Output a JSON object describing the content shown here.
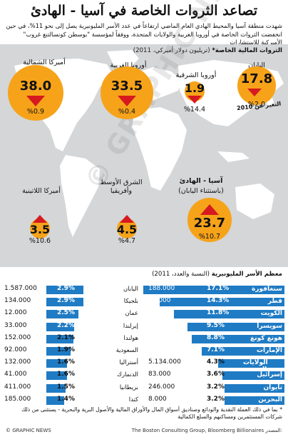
{
  "title": "تصاعد الثروات الخاصة في آسيا - الهادئ",
  "intro": "شهدت منطقة آسيا والمحيط الهادي العام الماضي ارتفاعاً في عدد الأسر المليونيرية يصل إلى نحو 11%، في حين انخفضت الثروات الخاصة في أوروبا الغربية والولايات المتحدة، ووفقاً لمؤسسة \"بوسطن كونسالتنغ غروب\" الأميركية للاستشارات",
  "map_heading": {
    "bold": "الثروات المالية الخاصة*",
    "sub": " (تريليون دولار أميركي، 2011)"
  },
  "japan_note": "التغير عن 2010",
  "watermark": "© GRAPHIC NEWS",
  "colors": {
    "bubble": "#f6a31a",
    "arrow": "#d61a1f",
    "bar": "#1f7bc4",
    "map_bg": "#d4d6d8",
    "land": "#ffffff"
  },
  "chart_data": [
    {
      "type": "scatter",
      "title": "الثروات المالية الخاصة*",
      "subtitle": "(تريليون دولار أميركي، 2011)",
      "regions": [
        {
          "name": "أميركا الشمالية",
          "value": 38.0,
          "value_label": "38.0",
          "change_pct": -0.9,
          "change_label": "%0.9",
          "direction": "down"
        },
        {
          "name": "أوروبا الغربية",
          "value": 33.5,
          "value_label": "33.5",
          "change_pct": -0.4,
          "change_label": "%0.4",
          "direction": "down"
        },
        {
          "name": "أوروبا الشرقية",
          "value": 1.9,
          "value_label": "1.9",
          "change_pct": -14.4,
          "change_label": "%14.4",
          "direction": "down"
        },
        {
          "name": "اليابان",
          "value": 17.8,
          "value_label": "17.8",
          "change_pct": -2.0,
          "change_label": "%2.0",
          "direction": "down"
        },
        {
          "name": "أميركا اللاتينية",
          "value": 3.5,
          "value_label": "3.5",
          "change_pct": 10.6,
          "change_label": "%10.6",
          "direction": "up"
        },
        {
          "name": "الشرق الأوسط وأفريقيا",
          "value": 4.5,
          "value_label": "4.5",
          "change_pct": 4.7,
          "change_label": "%4.7",
          "direction": "up"
        },
        {
          "name": "آسيا - الهادئ",
          "name_line2": "(باستثناء اليابان)",
          "value": 23.7,
          "value_label": "23.7",
          "change_pct": 10.7,
          "change_label": "%10.7",
          "direction": "up"
        }
      ]
    },
    {
      "type": "bar",
      "title": "معظم الأسر المليونيرية",
      "subtitle": "(النسبة والعدد، 2011)",
      "unit": "%",
      "columns": [
        {
          "rows": [
            {
              "country": "سنغافورة",
              "pct": 17.1,
              "pct_label": "17.1%",
              "count": "188.000"
            },
            {
              "country": "قطر",
              "pct": 14.3,
              "pct_label": "14.3%",
              "count": "47.000"
            },
            {
              "country": "الكويت",
              "pct": 11.8,
              "pct_label": "11.8%",
              "count": "63.000"
            },
            {
              "country": "سويسرا",
              "pct": 9.5,
              "pct_label": "9.5%",
              "count": "322.000"
            },
            {
              "country": "هونغ كونغ",
              "pct": 8.8,
              "pct_label": "8.8%",
              "count": "212.000"
            },
            {
              "country": "الإمارات",
              "pct": 7.1,
              "pct_label": "7.1%",
              "count": "57.000"
            },
            {
              "country": "الولايات المتحدة",
              "pct": 4.3,
              "pct_label": "4.3%",
              "count": "5.134.000"
            },
            {
              "country": "إسرائيل",
              "pct": 3.6,
              "pct_label": "3.6%",
              "count": "83.000"
            },
            {
              "country": "تايوان",
              "pct": 3.2,
              "pct_label": "3.2%",
              "count": "246.000"
            },
            {
              "country": "البحرين",
              "pct": 3.2,
              "pct_label": "3.2%",
              "count": "8.000"
            }
          ]
        },
        {
          "rows": [
            {
              "country": "اليابان",
              "pct": 2.9,
              "pct_label": "2.9%",
              "count": "1.587.000"
            },
            {
              "country": "بلجيكا",
              "pct": 2.9,
              "pct_label": "2.9%",
              "count": "134.000"
            },
            {
              "country": "عمان",
              "pct": 2.5,
              "pct_label": "2.5%",
              "count": "12.000"
            },
            {
              "country": "إيرلندا",
              "pct": 2.2,
              "pct_label": "2.2%",
              "count": "33.000"
            },
            {
              "country": "هولندا",
              "pct": 2.1,
              "pct_label": "2.1%",
              "count": "152.000"
            },
            {
              "country": "السعودية",
              "pct": 1.9,
              "pct_label": "1.9%",
              "count": "92.000"
            },
            {
              "country": "أستراليا",
              "pct": 1.6,
              "pct_label": "1.6%",
              "count": "132.000"
            },
            {
              "country": "الدنمارك",
              "pct": 1.6,
              "pct_label": "1.6%",
              "count": "41.000"
            },
            {
              "country": "بريطانيا",
              "pct": 1.5,
              "pct_label": "1.5%",
              "count": "411.000"
            },
            {
              "country": "كندا",
              "pct": 1.4,
              "pct_label": "1.4%",
              "count": "185.000"
            }
          ]
        }
      ]
    }
  ],
  "footnote": "* بما في ذلك العملة النقدية والودائع وصناديق أسواق المال والأوراق المالية والأصول البرية والبحرية - يستثنى من ذلك شركات المستثمرين ومساكنهم والسلع الكمالية",
  "footer": {
    "credit": "© GRAPHIC NEWS",
    "source": "The Boston Consulting Group, Bloomberg Billionaires",
    "source_label": "المصدر:"
  }
}
